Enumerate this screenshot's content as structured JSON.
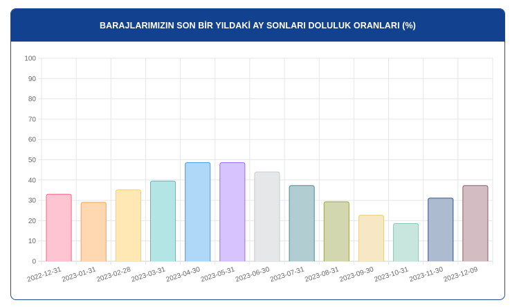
{
  "header": {
    "title": "BARAJLARIMIZIN SON BİR YILDAKİ AY SONLARI DOLULUK ORANLARI (%)"
  },
  "chart_data": {
    "type": "bar",
    "title": "BARAJLARIMIZIN SON BİR YILDAKİ AY SONLARI DOLULUK ORANLARI (%)",
    "xlabel": "",
    "ylabel": "",
    "ylim": [
      0,
      100
    ],
    "yticks": [
      0,
      10,
      20,
      30,
      40,
      50,
      60,
      70,
      80,
      90,
      100
    ],
    "grid": true,
    "legend": "none",
    "categories": [
      "2022-12-31",
      "2023-01-31",
      "2023-02-28",
      "2023-03-31",
      "2023-04-30",
      "2023-05-31",
      "2023-06-30",
      "2023-07-31",
      "2023-08-31",
      "2023-09-30",
      "2023-10-31",
      "2023-11-30",
      "2023-12-09"
    ],
    "values": [
      33.0,
      29.0,
      35.2,
      39.5,
      48.6,
      48.6,
      44.0,
      37.3,
      29.3,
      22.7,
      18.6,
      31.1,
      37.3
    ],
    "colors": [
      {
        "fill": "#ffc4d1",
        "stroke": "#ff6384"
      },
      {
        "fill": "#ffd7b0",
        "stroke": "#ff9f40"
      },
      {
        "fill": "#ffe8b3",
        "stroke": "#ffcd56"
      },
      {
        "fill": "#b3e5e5",
        "stroke": "#4bc0c0"
      },
      {
        "fill": "#afd8f8",
        "stroke": "#36a2eb"
      },
      {
        "fill": "#d7c4ff",
        "stroke": "#9966ff"
      },
      {
        "fill": "#e6e7e9",
        "stroke": "#c9cbcf"
      },
      {
        "fill": "#b1cdd1",
        "stroke": "#4d8b90"
      },
      {
        "fill": "#d3d7b0",
        "stroke": "#9aa14a"
      },
      {
        "fill": "#f6e8c5",
        "stroke": "#e8cf8f"
      },
      {
        "fill": "#c8e6dd",
        "stroke": "#8fc7b5"
      },
      {
        "fill": "#adbbd0",
        "stroke": "#36507a"
      },
      {
        "fill": "#d4bcc3",
        "stroke": "#8a5b6a"
      }
    ]
  }
}
